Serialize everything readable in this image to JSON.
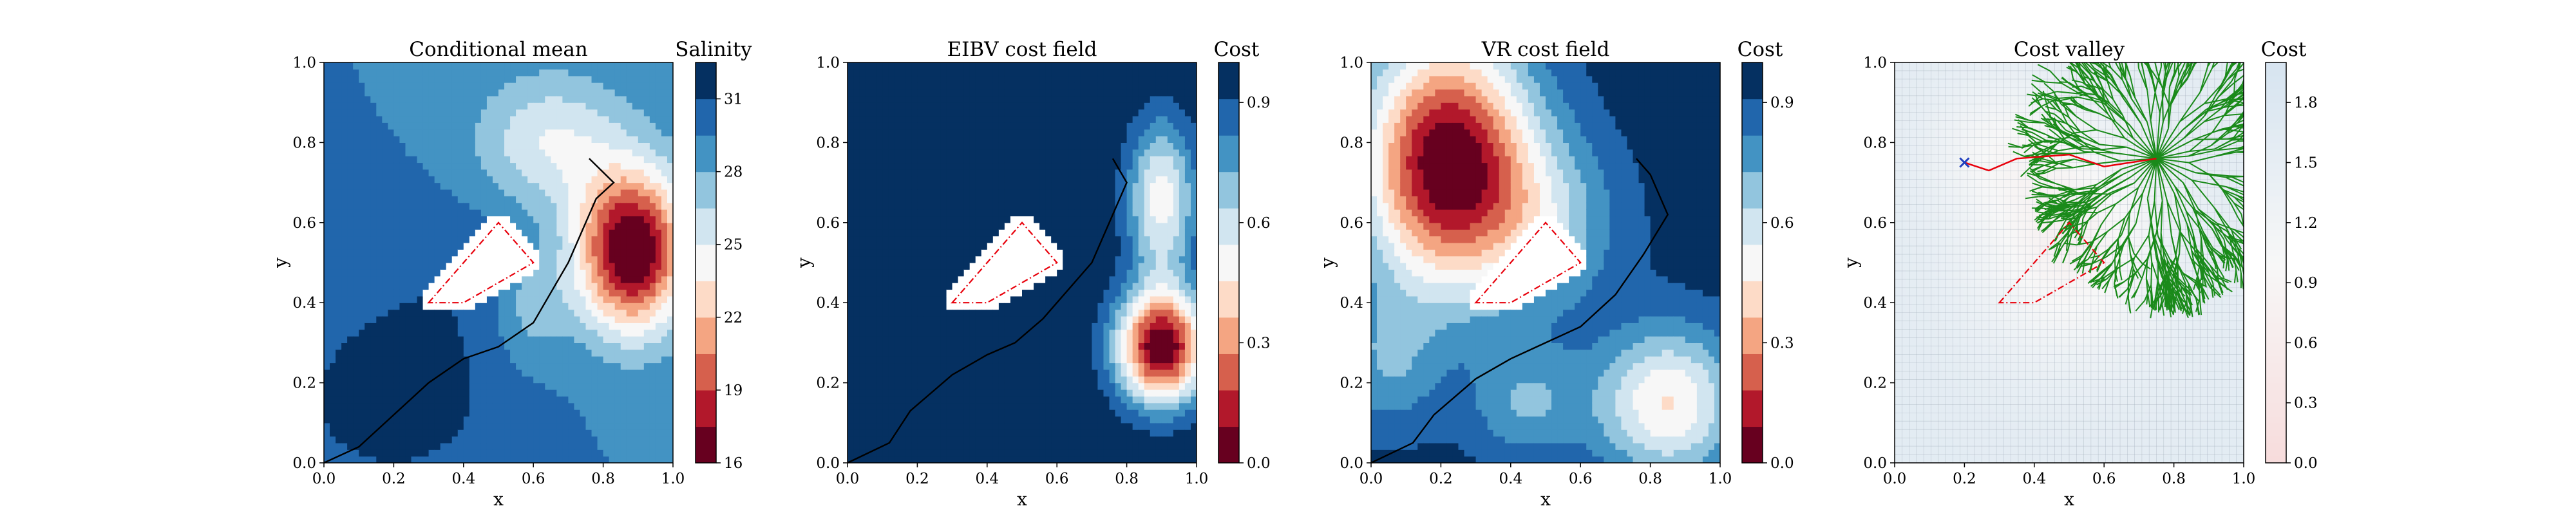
{
  "figure": {
    "background": "#ffffff",
    "palette_RdBu": [
      "#67001f",
      "#b2182b",
      "#d6604d",
      "#f4a582",
      "#fddbc7",
      "#f7f7f7",
      "#d1e5f0",
      "#92c5de",
      "#4393c3",
      "#2166ac",
      "#053061"
    ]
  },
  "chart_data": [
    {
      "type": "heatmap",
      "id": "conditional-mean",
      "title": "Conditional mean",
      "xlabel": "x",
      "ylabel": "y",
      "xlim": [
        0,
        1
      ],
      "ylim": [
        0,
        1
      ],
      "xticks": [
        "0.0",
        "0.2",
        "0.4",
        "0.6",
        "0.8",
        "1.0"
      ],
      "yticks": [
        "0.0",
        "0.2",
        "0.4",
        "0.6",
        "0.8",
        "1.0"
      ],
      "colorbar": {
        "title": "Salinity",
        "ticks": [
          "16",
          "19",
          "22",
          "25",
          "28",
          "31"
        ],
        "tick_values": [
          16,
          19,
          22,
          25,
          28,
          31
        ],
        "range": [
          16,
          32.5
        ],
        "levels": 11,
        "colormap": "RdBu"
      },
      "field": {
        "base": 29.5,
        "terms": [
          {
            "x": 0.88,
            "y": 0.53,
            "amp": -14.5,
            "sx": 0.11,
            "sy": 0.14
          },
          {
            "x": 0.65,
            "y": 0.8,
            "amp": -4.5,
            "sx": 0.15,
            "sy": 0.12
          },
          {
            "x": 0.6,
            "y": 0.4,
            "amp": -3.0,
            "sx": 0.08,
            "sy": 0.1
          },
          {
            "x": 0.2,
            "y": 0.15,
            "amp": 2.8,
            "sx": 0.18,
            "sy": 0.13
          },
          {
            "x": 0.4,
            "y": 0.45,
            "amp": 1.3,
            "sx": 0.3,
            "sy": 0.15
          }
        ]
      },
      "trajectory": [
        [
          0.0,
          0.0
        ],
        [
          0.1,
          0.04
        ],
        [
          0.2,
          0.12
        ],
        [
          0.3,
          0.2
        ],
        [
          0.4,
          0.26
        ],
        [
          0.5,
          0.29
        ],
        [
          0.6,
          0.35
        ],
        [
          0.66,
          0.44
        ],
        [
          0.7,
          0.5
        ],
        [
          0.74,
          0.58
        ],
        [
          0.78,
          0.66
        ],
        [
          0.83,
          0.7
        ],
        [
          0.76,
          0.76
        ]
      ],
      "obstacle": [
        [
          0.3,
          0.4
        ],
        [
          0.5,
          0.6
        ],
        [
          0.6,
          0.5
        ],
        [
          0.4,
          0.4
        ]
      ],
      "show_obstacle_mask": true
    },
    {
      "type": "heatmap",
      "id": "eibv-cost-field",
      "title": "EIBV cost field",
      "xlabel": "x",
      "ylabel": "y",
      "xlim": [
        0,
        1
      ],
      "ylim": [
        0,
        1
      ],
      "xticks": [
        "0.0",
        "0.2",
        "0.4",
        "0.6",
        "0.8",
        "1.0"
      ],
      "yticks": [
        "0.0",
        "0.2",
        "0.4",
        "0.6",
        "0.8",
        "1.0"
      ],
      "colorbar": {
        "title": "Cost",
        "ticks": [
          "0.0",
          "0.3",
          "0.6",
          "0.9"
        ],
        "tick_values": [
          0,
          0.3,
          0.6,
          0.9
        ],
        "range": [
          0,
          1.0
        ],
        "levels": 11,
        "colormap": "RdBu"
      },
      "field": {
        "base": 1.0,
        "terms": [
          {
            "x": 0.9,
            "y": 0.29,
            "amp": -1.0,
            "sx": 0.09,
            "sy": 0.1
          },
          {
            "x": 0.9,
            "y": 0.66,
            "amp": -0.5,
            "sx": 0.07,
            "sy": 0.14
          },
          {
            "x": 0.13,
            "y": 0.83,
            "amp": -0.08,
            "sx": 0.14,
            "sy": 0.12
          }
        ]
      },
      "trajectory": [
        [
          0.0,
          0.0
        ],
        [
          0.12,
          0.05
        ],
        [
          0.18,
          0.13
        ],
        [
          0.3,
          0.22
        ],
        [
          0.4,
          0.27
        ],
        [
          0.48,
          0.3
        ],
        [
          0.56,
          0.36
        ],
        [
          0.62,
          0.42
        ],
        [
          0.7,
          0.5
        ],
        [
          0.76,
          0.62
        ],
        [
          0.8,
          0.7
        ],
        [
          0.76,
          0.76
        ]
      ],
      "obstacle": [
        [
          0.3,
          0.4
        ],
        [
          0.5,
          0.6
        ],
        [
          0.6,
          0.5
        ],
        [
          0.4,
          0.4
        ]
      ],
      "show_obstacle_mask": true
    },
    {
      "type": "heatmap",
      "id": "vr-cost-field",
      "title": "VR cost field",
      "xlabel": "x",
      "ylabel": "y",
      "xlim": [
        0,
        1
      ],
      "ylim": [
        0,
        1
      ],
      "xticks": [
        "0.0",
        "0.2",
        "0.4",
        "0.6",
        "0.8",
        "1.0"
      ],
      "yticks": [
        "0.0",
        "0.2",
        "0.4",
        "0.6",
        "0.8",
        "1.0"
      ],
      "colorbar": {
        "title": "Cost",
        "ticks": [
          "0.0",
          "0.3",
          "0.6",
          "0.9"
        ],
        "tick_values": [
          0,
          0.3,
          0.6,
          0.9
        ],
        "range": [
          0,
          1.0
        ],
        "levels": 11,
        "colormap": "RdBu"
      },
      "field": {
        "base": 0.95,
        "terms": [
          {
            "x": 0.22,
            "y": 0.75,
            "amp": -0.95,
            "sx": 0.17,
            "sy": 0.22
          },
          {
            "x": 0.85,
            "y": 0.15,
            "amp": -0.5,
            "sx": 0.14,
            "sy": 0.13
          },
          {
            "x": 0.5,
            "y": 0.6,
            "amp": -0.25,
            "sx": 0.15,
            "sy": 0.15
          },
          {
            "x": 0.45,
            "y": 0.15,
            "amp": -0.22,
            "sx": 0.12,
            "sy": 0.1
          },
          {
            "x": 0.05,
            "y": 0.25,
            "amp": -0.2,
            "sx": 0.1,
            "sy": 0.12
          }
        ]
      },
      "trajectory": [
        [
          0.0,
          0.0
        ],
        [
          0.12,
          0.05
        ],
        [
          0.18,
          0.12
        ],
        [
          0.3,
          0.21
        ],
        [
          0.4,
          0.26
        ],
        [
          0.5,
          0.3
        ],
        [
          0.6,
          0.34
        ],
        [
          0.7,
          0.42
        ],
        [
          0.78,
          0.52
        ],
        [
          0.85,
          0.62
        ],
        [
          0.8,
          0.72
        ],
        [
          0.76,
          0.76
        ]
      ],
      "obstacle": [
        [
          0.3,
          0.4
        ],
        [
          0.5,
          0.6
        ],
        [
          0.6,
          0.5
        ],
        [
          0.4,
          0.4
        ]
      ],
      "show_obstacle_mask": true
    },
    {
      "type": "heatmap",
      "id": "cost-valley",
      "title": "Cost valley",
      "xlabel": "x",
      "ylabel": "y",
      "xlim": [
        0,
        1
      ],
      "ylim": [
        0,
        1
      ],
      "xticks": [
        "0.0",
        "0.2",
        "0.4",
        "0.6",
        "0.8",
        "1.0"
      ],
      "yticks": [
        "0.0",
        "0.2",
        "0.4",
        "0.6",
        "0.8",
        "1.0"
      ],
      "colorbar": {
        "title": "Cost",
        "ticks": [
          "0.0",
          "0.3",
          "0.6",
          "0.9",
          "1.2",
          "1.5",
          "1.8"
        ],
        "tick_values": [
          0,
          0.3,
          0.6,
          0.9,
          1.2,
          1.5,
          1.8
        ],
        "range": [
          0,
          2.0
        ],
        "colormap": "RdBu-light"
      },
      "field": {
        "base": 1.6,
        "terms": [
          {
            "x": 0.5,
            "y": 0.55,
            "amp": -0.8,
            "sx": 0.2,
            "sy": 0.2
          },
          {
            "x": 0.3,
            "y": 0.8,
            "amp": -0.4,
            "sx": 0.15,
            "sy": 0.12
          }
        ]
      },
      "tree": {
        "root": [
          0.75,
          0.76
        ],
        "color": "#1a8a1a",
        "node_grid_color": "#9aa6b4"
      },
      "path": [
        [
          0.2,
          0.75
        ],
        [
          0.27,
          0.73
        ],
        [
          0.35,
          0.76
        ],
        [
          0.5,
          0.77
        ],
        [
          0.6,
          0.74
        ],
        [
          0.75,
          0.76
        ]
      ],
      "path_color": "#e8000b",
      "start_marker": {
        "x": 0.2,
        "y": 0.75,
        "symbol": "x",
        "color": "#1f3fbf"
      },
      "obstacle": [
        [
          0.3,
          0.4
        ],
        [
          0.5,
          0.6
        ],
        [
          0.6,
          0.5
        ],
        [
          0.4,
          0.4
        ]
      ],
      "show_obstacle_mask": false
    }
  ]
}
